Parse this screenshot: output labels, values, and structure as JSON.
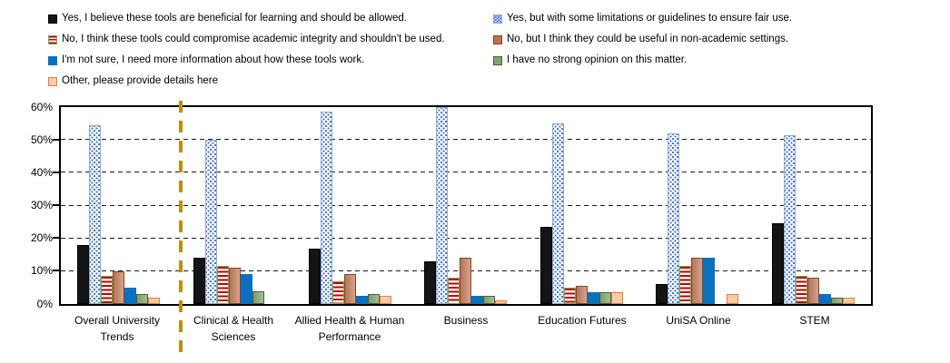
{
  "legend": {
    "columns": [
      {
        "items": [
          {
            "series": 0,
            "label": "Yes, I believe these tools are beneficial for learning and should be allowed."
          },
          {
            "series": 2,
            "label": "No, I think these tools could compromise academic integrity and shouldn't be used."
          },
          {
            "series": 4,
            "label": "I'm not sure, I need more information about how these tools work."
          },
          {
            "series": 6,
            "label": "Other, please provide details here"
          }
        ]
      },
      {
        "items": [
          {
            "series": 1,
            "label": "Yes, but with some limitations or guidelines to ensure fair use."
          },
          {
            "series": 3,
            "label": "No, but I think they could be useful in non-academic settings."
          },
          {
            "series": 5,
            "label": "I have no strong opinion on this matter."
          }
        ]
      }
    ]
  },
  "chart_data": {
    "type": "bar",
    "title": "",
    "xlabel": "",
    "ylabel": "",
    "ylim": [
      0,
      60
    ],
    "y_ticks": [
      "0%",
      "10%",
      "20%",
      "30%",
      "40%",
      "50%",
      "60%"
    ],
    "grid": "dashed horizontal gridlines every 10%",
    "legend_position": "top",
    "categories": [
      "Overall University Trends",
      "Clinical & Health Sciences",
      "Allied Health & Human Performance",
      "Business",
      "Education Futures",
      "UniSA Online",
      "STEM"
    ],
    "series": [
      {
        "key": "yes-beneficial",
        "name": "Yes, I believe these tools are beneficial for learning and should be allowed.",
        "pattern": "solid",
        "fill": "#141414",
        "border": "#000000",
        "values": [
          18,
          14,
          17,
          13,
          23.5,
          6,
          24.5
        ]
      },
      {
        "key": "yes-with-limitations",
        "name": "Yes, but with some limitations or guidelines to ensure fair use.",
        "pattern": "blue-dots-on-white",
        "fill": "#FFFFFF",
        "border": "#8FAADC",
        "accent": "#4472C4",
        "values": [
          54.5,
          50,
          58.5,
          60,
          55,
          52,
          51.5
        ]
      },
      {
        "key": "no-integrity-risk",
        "name": "No, I think these tools could compromise academic integrity and shouldn't be used.",
        "pattern": "red-hstripes-on-white",
        "fill": "#FFFFFF",
        "border": "#70AD47",
        "accent": "#C00000",
        "values": [
          8.5,
          11.5,
          7,
          8,
          5,
          11.5,
          8.5
        ]
      },
      {
        "key": "no-but-useful",
        "name": "No, but I think they could be useful in non-academic settings.",
        "pattern": "solid",
        "fill": "#C58B74",
        "border": "#8C4318",
        "values": [
          10,
          11,
          9,
          14,
          5.5,
          14,
          8
        ]
      },
      {
        "key": "not-sure",
        "name": "I'm not sure, I need more information about how these tools work.",
        "pattern": "solid",
        "fill": "#0C70C0",
        "border": "#0C70C0",
        "values": [
          5,
          9,
          2.5,
          2.5,
          3.5,
          14,
          3
        ]
      },
      {
        "key": "no-strong-opinion",
        "name": "I have no strong opinion on this matter.",
        "pattern": "solid",
        "fill": "#8FA77E",
        "border": "#44622C",
        "values": [
          3,
          4,
          3,
          2.5,
          3.5,
          0,
          2
        ]
      },
      {
        "key": "other",
        "name": "Other, please provide details here",
        "pattern": "solid",
        "fill": "#F9CBAD",
        "border": "#ED7D31",
        "values": [
          2,
          0,
          2.5,
          1,
          3.5,
          3,
          2
        ]
      }
    ]
  },
  "divider": {
    "color": "#BF8F00",
    "style": "dashed vertical line separating Overall University Trends from division results"
  }
}
